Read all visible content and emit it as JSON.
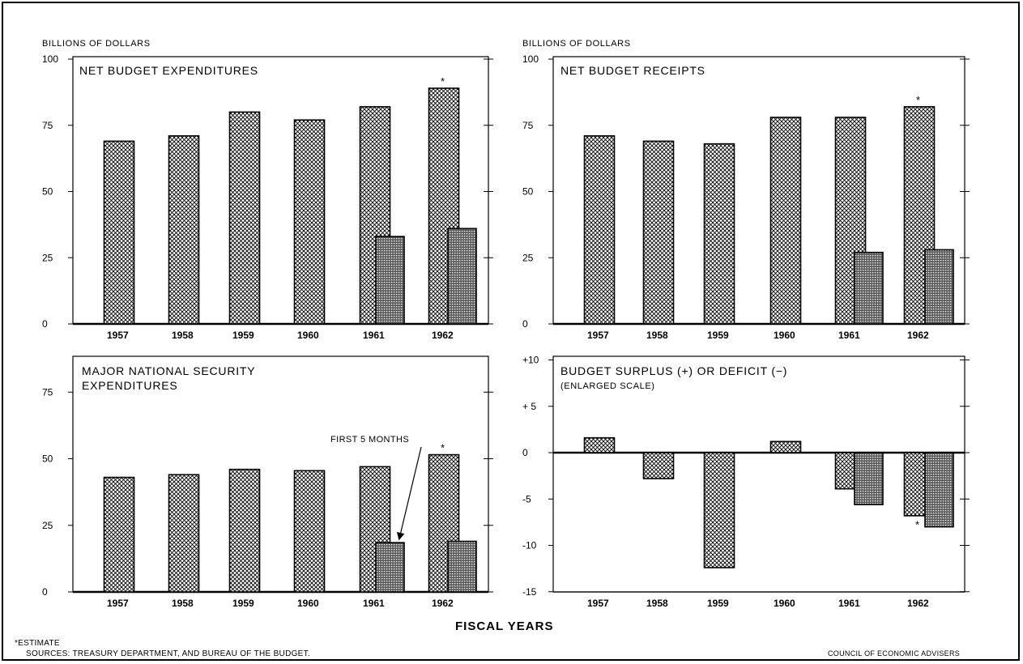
{
  "colors": {
    "ink": "#000000",
    "paper": "#ffffff",
    "hatch": "#000000",
    "full_year_fill": "crosshatch",
    "partial_fill": "dense-stipple"
  },
  "x_axis_title": "FISCAL YEARS",
  "footer": {
    "estimate_note": "*ESTIMATE",
    "sources": "SOURCES: TREASURY DEPARTMENT, AND BUREAU OF THE BUDGET.",
    "credit": "COUNCIL OF ECONOMIC ADVISERS"
  },
  "annotation": "FIRST 5 MONTHS",
  "estimate_mark": "*",
  "chart_data": [
    {
      "type": "bar",
      "title": "NET BUDGET EXPENDITURES",
      "ylabel": "BILLIONS OF DOLLARS",
      "ylim": [
        0,
        100
      ],
      "yticks": [
        0,
        25,
        50,
        75,
        100
      ],
      "yticklabels": [
        "0",
        "25",
        "50",
        "75",
        "100"
      ],
      "categories": [
        "1957",
        "1958",
        "1959",
        "1960",
        "1961",
        "1962"
      ],
      "series": [
        {
          "values": [
            69,
            71,
            80,
            77,
            82,
            89
          ]
        },
        {
          "values": [
            null,
            null,
            null,
            null,
            33,
            36
          ]
        }
      ],
      "estimated": [
        "1962"
      ]
    },
    {
      "type": "bar",
      "title": "NET BUDGET RECEIPTS",
      "ylabel": "BILLIONS OF DOLLARS",
      "ylim": [
        0,
        100
      ],
      "yticks": [
        0,
        25,
        50,
        75,
        100
      ],
      "yticklabels": [
        "0",
        "25",
        "50",
        "75",
        "100"
      ],
      "categories": [
        "1957",
        "1958",
        "1959",
        "1960",
        "1961",
        "1962"
      ],
      "series": [
        {
          "values": [
            71,
            69,
            68,
            78,
            78,
            82
          ]
        },
        {
          "values": [
            null,
            null,
            null,
            null,
            27,
            28
          ]
        }
      ],
      "estimated": [
        "1962"
      ]
    },
    {
      "type": "bar",
      "title": "MAJOR NATIONAL SECURITY EXPENDITURES",
      "title_lines": [
        "MAJOR NATIONAL SECURITY",
        "EXPENDITURES"
      ],
      "ylabel": "",
      "ylim": [
        0,
        85
      ],
      "yticks": [
        0,
        25,
        50,
        75
      ],
      "yticklabels": [
        "0",
        "25",
        "50",
        "75"
      ],
      "categories": [
        "1957",
        "1958",
        "1959",
        "1960",
        "1961",
        "1962"
      ],
      "series": [
        {
          "values": [
            43,
            44,
            46,
            45.5,
            47,
            51.5
          ]
        },
        {
          "values": [
            null,
            null,
            null,
            null,
            18.5,
            19
          ]
        }
      ],
      "estimated": [
        "1962"
      ]
    },
    {
      "type": "bar",
      "title": "BUDGET SURPLUS (+) OR DEFICIT (−)",
      "subtitle": "(ENLARGED SCALE)",
      "ylabel": "",
      "ylim": [
        -15,
        10
      ],
      "yticks": [
        -15,
        -10,
        -5,
        0,
        5,
        10
      ],
      "yticklabels": [
        "-15",
        "-10",
        "-5",
        "0",
        "+ 5",
        "+10"
      ],
      "categories": [
        "1957",
        "1958",
        "1959",
        "1960",
        "1961",
        "1962"
      ],
      "series": [
        {
          "values": [
            1.6,
            -2.8,
            -12.4,
            1.2,
            -3.9,
            -6.8
          ]
        },
        {
          "values": [
            null,
            null,
            null,
            null,
            -5.6,
            -8
          ]
        }
      ],
      "estimated": [
        "1962"
      ]
    }
  ]
}
